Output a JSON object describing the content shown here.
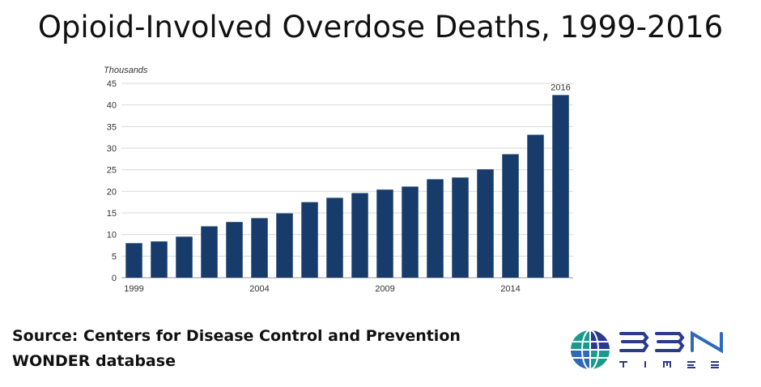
{
  "title": "Opioid-Involved Overdose Deaths, 1999-2016",
  "source_lines": [
    "Source: Centers for Disease Control and Prevention",
    "WONDER database"
  ],
  "logo": {
    "top_text": "BBN",
    "bottom_text": "TIMES",
    "colors": [
      "#1b9a8c",
      "#2d6bb6",
      "#2a3a8c"
    ]
  },
  "chart_data": {
    "type": "bar",
    "ylabel": "Thousands",
    "ylim": [
      0,
      45
    ],
    "yticks": [
      0,
      5,
      10,
      15,
      20,
      25,
      30,
      35,
      40,
      45
    ],
    "grid": true,
    "bar_color": "#173c6b",
    "categories": [
      1999,
      2000,
      2001,
      2002,
      2003,
      2004,
      2005,
      2006,
      2007,
      2008,
      2009,
      2010,
      2011,
      2012,
      2013,
      2014,
      2015,
      2016
    ],
    "x_tick_labels": [
      {
        "category": 1999,
        "label": "1999"
      },
      {
        "category": 2004,
        "label": "2004"
      },
      {
        "category": 2009,
        "label": "2009"
      },
      {
        "category": 2014,
        "label": "2014"
      }
    ],
    "annotation": {
      "category": 2016,
      "text": "2016"
    },
    "values": [
      8.0,
      8.4,
      9.5,
      11.9,
      12.9,
      13.8,
      14.9,
      17.5,
      18.5,
      19.6,
      20.4,
      21.1,
      22.8,
      23.2,
      25.1,
      28.6,
      33.1,
      42.3
    ]
  }
}
